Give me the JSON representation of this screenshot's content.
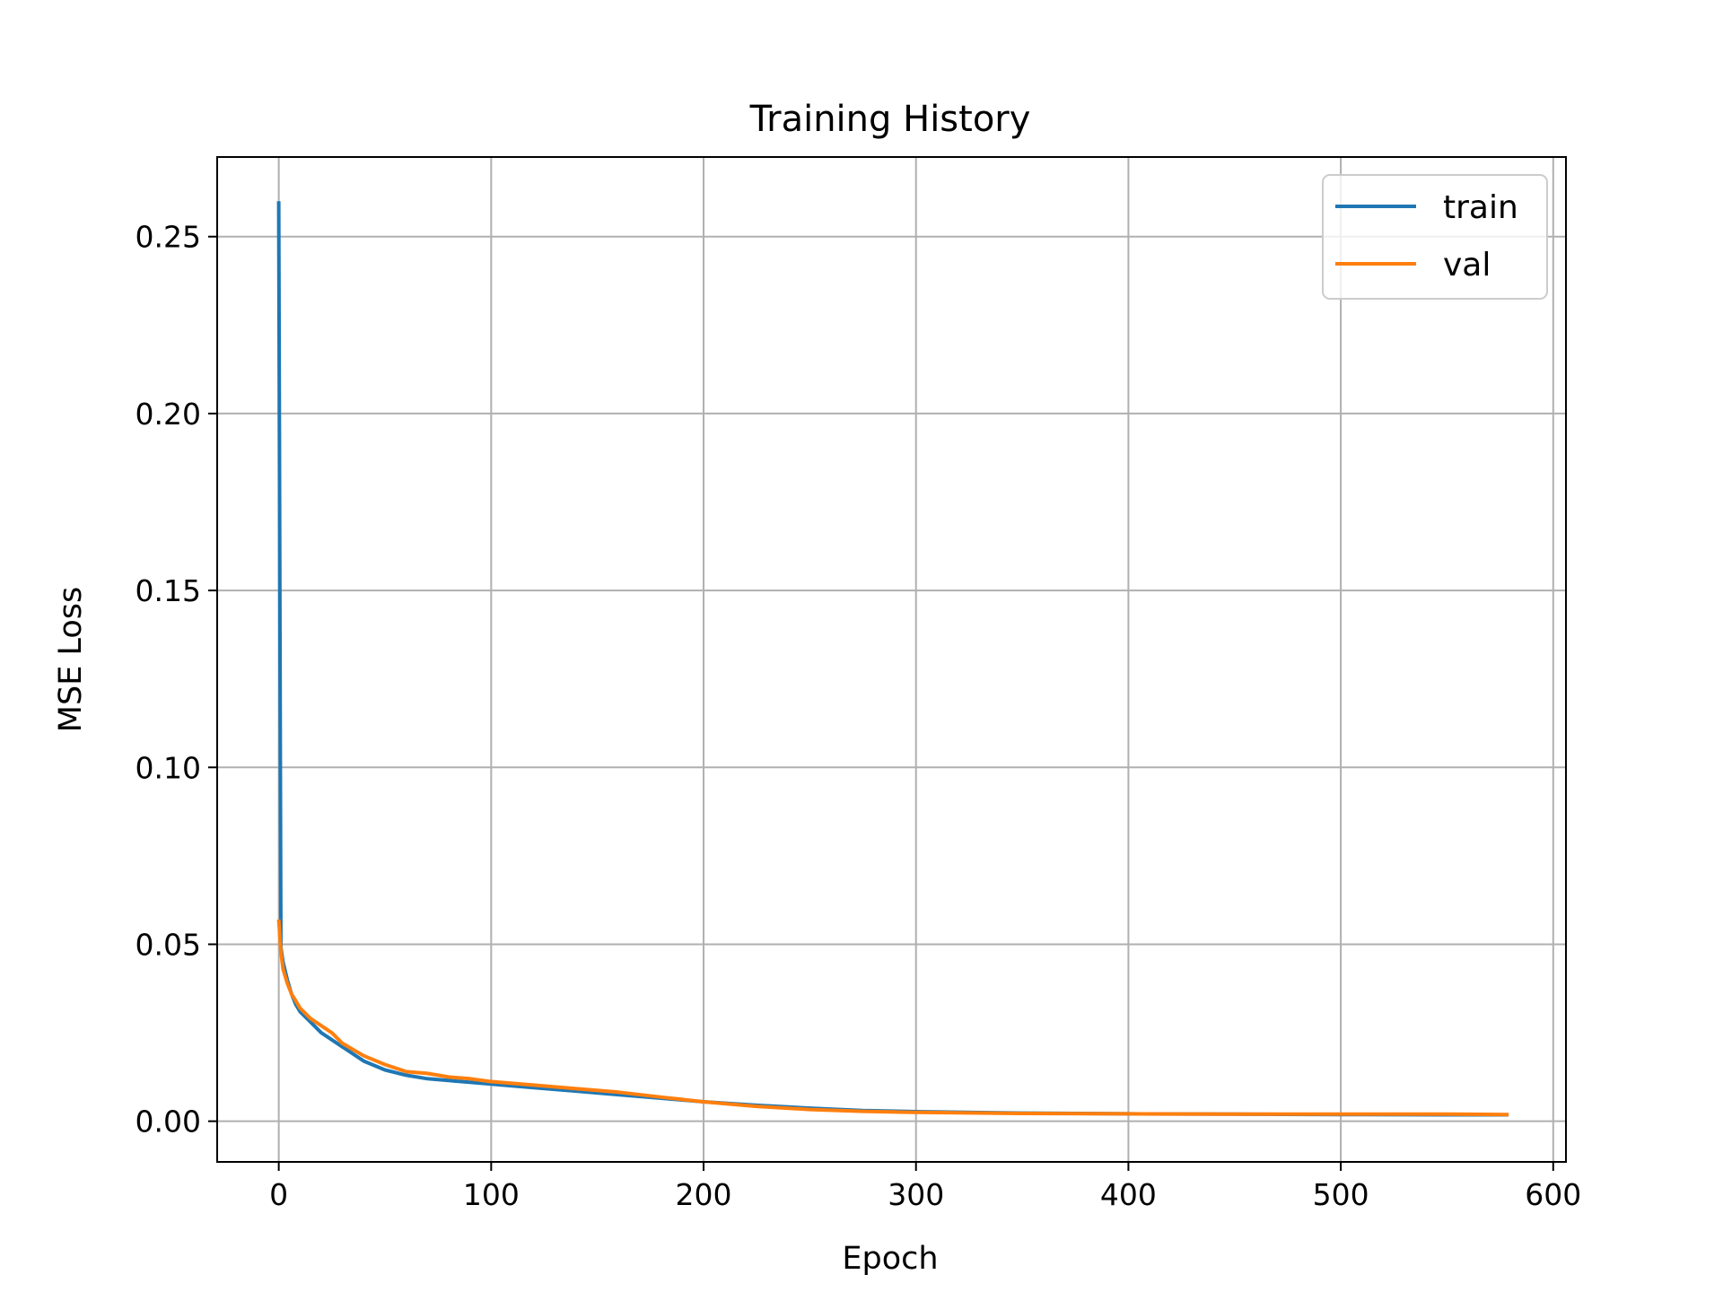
{
  "chart_data": {
    "type": "line",
    "title": "Training History",
    "xlabel": "Epoch",
    "ylabel": "MSE Loss",
    "xlim": [
      -29,
      606
    ],
    "ylim": [
      -0.0115,
      0.2725
    ],
    "xticks": [
      0,
      100,
      200,
      300,
      400,
      500,
      600
    ],
    "xtick_labels": [
      "0",
      "100",
      "200",
      "300",
      "400",
      "500",
      "600"
    ],
    "yticks": [
      0.0,
      0.05,
      0.1,
      0.15,
      0.2,
      0.25
    ],
    "ytick_labels": [
      "0.00",
      "0.05",
      "0.10",
      "0.15",
      "0.20",
      "0.25"
    ],
    "grid": true,
    "legend_position": "top-right",
    "series": [
      {
        "name": "train",
        "color": "#1f77b4",
        "x": [
          0,
          1,
          2,
          4,
          6,
          8,
          10,
          15,
          20,
          25,
          30,
          40,
          50,
          60,
          70,
          80,
          90,
          100,
          120,
          140,
          160,
          180,
          200,
          225,
          250,
          275,
          300,
          350,
          400,
          450,
          500,
          550,
          579
        ],
        "y": [
          0.26,
          0.049,
          0.045,
          0.04,
          0.036,
          0.033,
          0.031,
          0.028,
          0.025,
          0.023,
          0.021,
          0.017,
          0.0145,
          0.013,
          0.012,
          0.0115,
          0.011,
          0.0105,
          0.0095,
          0.0085,
          0.0075,
          0.0065,
          0.0055,
          0.0045,
          0.0037,
          0.003,
          0.0027,
          0.0023,
          0.0021,
          0.002,
          0.0019,
          0.0018,
          0.0018
        ]
      },
      {
        "name": "val",
        "color": "#ff7f0e",
        "x": [
          0,
          1,
          2,
          4,
          6,
          8,
          10,
          15,
          20,
          25,
          30,
          40,
          50,
          60,
          70,
          80,
          90,
          100,
          120,
          140,
          160,
          180,
          200,
          225,
          250,
          275,
          300,
          350,
          400,
          450,
          500,
          550,
          579
        ],
        "y": [
          0.057,
          0.048,
          0.043,
          0.039,
          0.036,
          0.034,
          0.032,
          0.029,
          0.027,
          0.025,
          0.022,
          0.0185,
          0.016,
          0.014,
          0.0135,
          0.0125,
          0.012,
          0.0112,
          0.0102,
          0.0092,
          0.0082,
          0.0068,
          0.0055,
          0.0042,
          0.0033,
          0.0028,
          0.0025,
          0.0022,
          0.0021,
          0.002,
          0.002,
          0.002,
          0.0019
        ]
      }
    ]
  }
}
